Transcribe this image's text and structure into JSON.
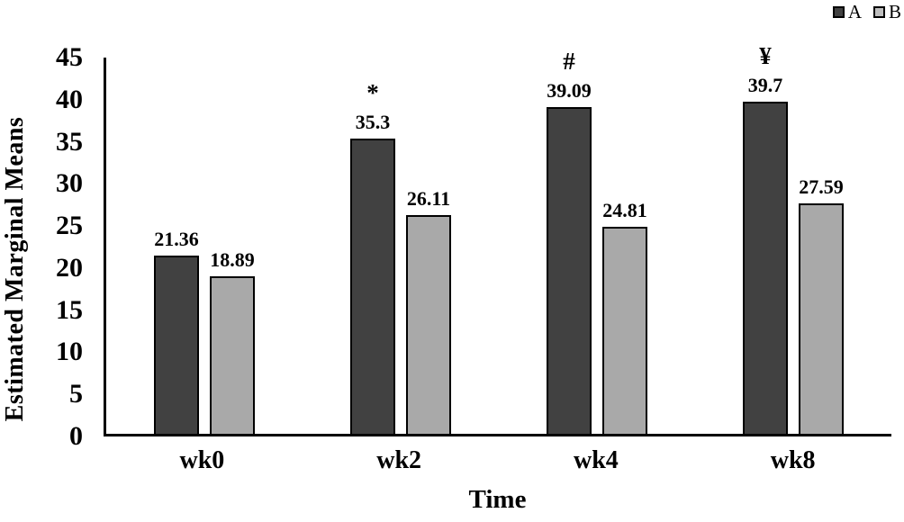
{
  "chart_data": {
    "type": "bar",
    "title": "",
    "xlabel": "Time",
    "ylabel": "Estimated Marginal Means",
    "categories": [
      "wk0",
      "wk2",
      "wk4",
      "wk8"
    ],
    "series": [
      {
        "name": "A",
        "values": [
          21.36,
          35.3,
          39.09,
          39.7
        ],
        "labels": [
          "21.36",
          "35.3",
          "39.09",
          "39.7"
        ],
        "color": "#414141"
      },
      {
        "name": "B",
        "values": [
          18.89,
          26.11,
          24.81,
          27.59
        ],
        "labels": [
          "18.89",
          "26.11",
          "24.81",
          "27.59"
        ],
        "color": "#a9a9a9"
      }
    ],
    "annotations_series": "A",
    "annotations": [
      "",
      "*",
      "#",
      "¥"
    ],
    "ylim": [
      0,
      45
    ],
    "ytick_step": 5,
    "yticks": [
      "0",
      "5",
      "10",
      "15",
      "20",
      "25",
      "30",
      "35",
      "40",
      "45"
    ],
    "grid": false,
    "legend": {
      "position": "top-right",
      "entries": [
        "A",
        "B"
      ],
      "swatch_colors": [
        "#414141",
        "#bfbfbf"
      ]
    },
    "colors": {
      "axis": "#000000",
      "bar_outline": "#000000",
      "background": "#ffffff",
      "text": "#000000"
    }
  }
}
